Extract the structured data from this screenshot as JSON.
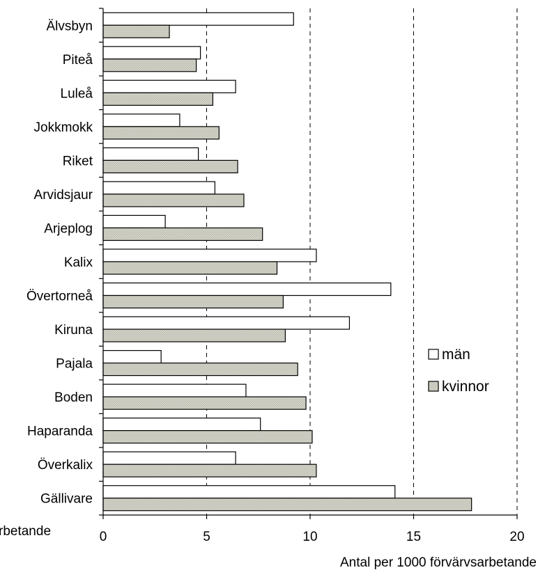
{
  "chart_data": {
    "type": "bar",
    "orientation": "horizontal",
    "categories": [
      "Älvsbyn",
      "Piteå",
      "Luleå",
      "Jokkmokk",
      "Riket",
      "Arvidsjaur",
      "Arjeplog",
      "Kalix",
      "Övertorneå",
      "Kiruna",
      "Pajala",
      "Boden",
      "Haparanda",
      "Överkalix",
      "Gällivare"
    ],
    "series": [
      {
        "name": "män",
        "color": "#ffffff",
        "values": [
          9.2,
          4.7,
          6.4,
          3.7,
          4.6,
          5.4,
          3.0,
          10.3,
          13.9,
          11.9,
          2.8,
          6.9,
          7.6,
          6.4,
          14.1
        ]
      },
      {
        "name": "kvinnor",
        "color": "#d2d2c8",
        "values": [
          3.2,
          4.5,
          5.3,
          5.6,
          6.5,
          6.8,
          7.7,
          8.4,
          8.7,
          8.8,
          9.4,
          9.8,
          10.1,
          10.3,
          17.8
        ]
      }
    ],
    "xlabel": "Antal per 1000 förvärvsarbetande",
    "xlabel_fragment": "rbetande",
    "xlim": [
      0,
      20
    ],
    "xticks": [
      "0",
      "5",
      "10",
      "15",
      "20"
    ],
    "xtick_values": [
      0,
      5,
      10,
      15,
      20
    ],
    "gridlines": [
      5,
      10,
      15,
      20
    ],
    "grid": "dashed vertical",
    "legend_position": "right"
  }
}
